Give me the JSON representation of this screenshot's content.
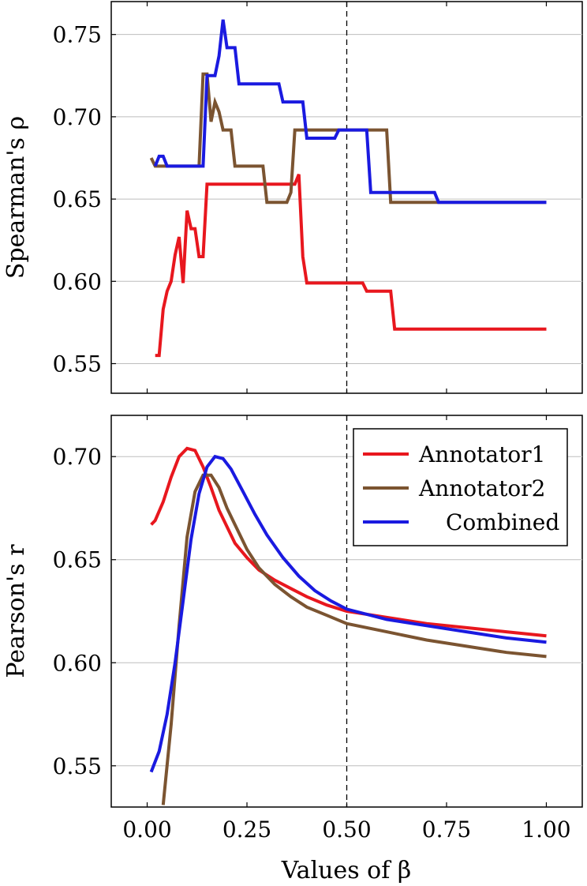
{
  "chart_data": [
    {
      "type": "line",
      "id": "spearman",
      "ylabel": "Spearman's ρ",
      "xlim": [
        -0.09,
        1.09
      ],
      "ylim": [
        0.532,
        0.77
      ],
      "yticks": [
        0.55,
        0.6,
        0.65,
        0.7,
        0.75
      ],
      "ytick_labels": [
        "0.55",
        "0.60",
        "0.65",
        "0.70",
        "0.75"
      ],
      "xticks": [
        0,
        0.25,
        0.5,
        0.75,
        1.0
      ],
      "grid": true,
      "vline_x": 0.5,
      "series": [
        {
          "name": "Annotator1",
          "color": "#e8171e",
          "points": [
            [
              0.02,
              0.555
            ],
            [
              0.03,
              0.555
            ],
            [
              0.04,
              0.583
            ],
            [
              0.05,
              0.594
            ],
            [
              0.06,
              0.6
            ],
            [
              0.07,
              0.616
            ],
            [
              0.08,
              0.627
            ],
            [
              0.09,
              0.599
            ],
            [
              0.1,
              0.643
            ],
            [
              0.11,
              0.632
            ],
            [
              0.12,
              0.632
            ],
            [
              0.13,
              0.615
            ],
            [
              0.14,
              0.615
            ],
            [
              0.15,
              0.659
            ],
            [
              0.16,
              0.659
            ],
            [
              0.36,
              0.659
            ],
            [
              0.37,
              0.659
            ],
            [
              0.38,
              0.665
            ],
            [
              0.39,
              0.615
            ],
            [
              0.4,
              0.599
            ],
            [
              0.54,
              0.599
            ],
            [
              0.55,
              0.594
            ],
            [
              0.61,
              0.594
            ],
            [
              0.62,
              0.571
            ],
            [
              1.0,
              0.571
            ]
          ]
        },
        {
          "name": "Annotator2",
          "color": "#7b5431",
          "points": [
            [
              0.01,
              0.675
            ],
            [
              0.02,
              0.67
            ],
            [
              0.13,
              0.67
            ],
            [
              0.14,
              0.726
            ],
            [
              0.15,
              0.726
            ],
            [
              0.16,
              0.697
            ],
            [
              0.17,
              0.709
            ],
            [
              0.18,
              0.703
            ],
            [
              0.19,
              0.692
            ],
            [
              0.21,
              0.692
            ],
            [
              0.22,
              0.67
            ],
            [
              0.29,
              0.67
            ],
            [
              0.3,
              0.648
            ],
            [
              0.35,
              0.648
            ],
            [
              0.36,
              0.654
            ],
            [
              0.37,
              0.692
            ],
            [
              0.6,
              0.692
            ],
            [
              0.61,
              0.648
            ],
            [
              1.0,
              0.648
            ]
          ]
        },
        {
          "name": "Combined",
          "color": "#1a1ae0",
          "points": [
            [
              0.02,
              0.67
            ],
            [
              0.03,
              0.676
            ],
            [
              0.04,
              0.676
            ],
            [
              0.05,
              0.67
            ],
            [
              0.14,
              0.67
            ],
            [
              0.15,
              0.725
            ],
            [
              0.17,
              0.725
            ],
            [
              0.18,
              0.737
            ],
            [
              0.19,
              0.759
            ],
            [
              0.2,
              0.742
            ],
            [
              0.22,
              0.742
            ],
            [
              0.23,
              0.72
            ],
            [
              0.33,
              0.72
            ],
            [
              0.34,
              0.709
            ],
            [
              0.39,
              0.709
            ],
            [
              0.4,
              0.687
            ],
            [
              0.47,
              0.687
            ],
            [
              0.48,
              0.692
            ],
            [
              0.55,
              0.692
            ],
            [
              0.56,
              0.654
            ],
            [
              0.72,
              0.654
            ],
            [
              0.73,
              0.648
            ],
            [
              1.0,
              0.648
            ]
          ]
        }
      ]
    },
    {
      "type": "line",
      "id": "pearson",
      "ylabel": "Pearson's r",
      "xlabel": "Values of β",
      "xlim": [
        -0.09,
        1.09
      ],
      "ylim": [
        0.53,
        0.72
      ],
      "yticks": [
        0.55,
        0.6,
        0.65,
        0.7
      ],
      "ytick_labels": [
        "0.55",
        "0.60",
        "0.65",
        "0.70"
      ],
      "xticks": [
        0,
        0.25,
        0.5,
        0.75,
        1.0
      ],
      "xtick_labels": [
        "0.00",
        "0.25",
        "0.50",
        "0.75",
        "1.00"
      ],
      "grid": true,
      "vline_x": 0.5,
      "legend_position": "top-right",
      "series": [
        {
          "name": "Annotator1",
          "color": "#e8171e",
          "points": [
            [
              0.01,
              0.667
            ],
            [
              0.02,
              0.669
            ],
            [
              0.04,
              0.678
            ],
            [
              0.06,
              0.69
            ],
            [
              0.08,
              0.7
            ],
            [
              0.1,
              0.704
            ],
            [
              0.12,
              0.703
            ],
            [
              0.14,
              0.695
            ],
            [
              0.16,
              0.685
            ],
            [
              0.18,
              0.674
            ],
            [
              0.2,
              0.666
            ],
            [
              0.22,
              0.658
            ],
            [
              0.25,
              0.651
            ],
            [
              0.28,
              0.645
            ],
            [
              0.32,
              0.64
            ],
            [
              0.36,
              0.636
            ],
            [
              0.4,
              0.632
            ],
            [
              0.45,
              0.628
            ],
            [
              0.5,
              0.625
            ],
            [
              0.6,
              0.622
            ],
            [
              0.7,
              0.619
            ],
            [
              0.8,
              0.617
            ],
            [
              0.9,
              0.615
            ],
            [
              1.0,
              0.613
            ]
          ]
        },
        {
          "name": "Annotator2",
          "color": "#7b5431",
          "points": [
            [
              0.04,
              0.531
            ],
            [
              0.06,
              0.57
            ],
            [
              0.08,
              0.618
            ],
            [
              0.1,
              0.661
            ],
            [
              0.12,
              0.683
            ],
            [
              0.14,
              0.691
            ],
            [
              0.16,
              0.691
            ],
            [
              0.18,
              0.685
            ],
            [
              0.2,
              0.675
            ],
            [
              0.22,
              0.667
            ],
            [
              0.25,
              0.655
            ],
            [
              0.28,
              0.646
            ],
            [
              0.32,
              0.638
            ],
            [
              0.36,
              0.632
            ],
            [
              0.4,
              0.627
            ],
            [
              0.45,
              0.623
            ],
            [
              0.5,
              0.619
            ],
            [
              0.6,
              0.615
            ],
            [
              0.7,
              0.611
            ],
            [
              0.8,
              0.608
            ],
            [
              0.9,
              0.605
            ],
            [
              1.0,
              0.603
            ]
          ]
        },
        {
          "name": "Combined",
          "color": "#1a1ae0",
          "points": [
            [
              0.01,
              0.547
            ],
            [
              0.03,
              0.557
            ],
            [
              0.05,
              0.575
            ],
            [
              0.07,
              0.6
            ],
            [
              0.09,
              0.63
            ],
            [
              0.11,
              0.66
            ],
            [
              0.13,
              0.682
            ],
            [
              0.15,
              0.695
            ],
            [
              0.17,
              0.7
            ],
            [
              0.19,
              0.699
            ],
            [
              0.21,
              0.694
            ],
            [
              0.24,
              0.683
            ],
            [
              0.27,
              0.672
            ],
            [
              0.3,
              0.662
            ],
            [
              0.34,
              0.651
            ],
            [
              0.38,
              0.642
            ],
            [
              0.42,
              0.635
            ],
            [
              0.46,
              0.63
            ],
            [
              0.5,
              0.626
            ],
            [
              0.6,
              0.621
            ],
            [
              0.7,
              0.618
            ],
            [
              0.8,
              0.615
            ],
            [
              0.9,
              0.612
            ],
            [
              1.0,
              0.61
            ]
          ]
        }
      ]
    }
  ],
  "legend": {
    "items": [
      {
        "label": "Annotator1",
        "color": "#e8171e"
      },
      {
        "label": "Annotator2",
        "color": "#7b5431"
      },
      {
        "label": "Combined",
        "color": "#1a1ae0"
      }
    ]
  }
}
